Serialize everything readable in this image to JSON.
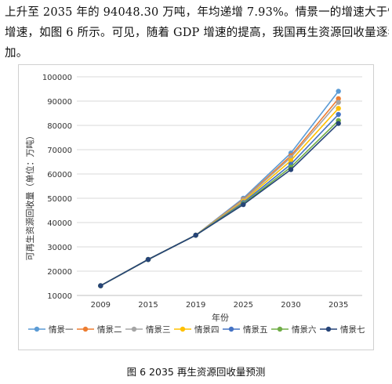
{
  "text_lines": [
    "上升至 2035 年的 94048.30 万吨，年均递增 7.93%。情景一的增速大于情景七的",
    "增速，如图 6 所示。可见，随着 GDP 增速的提高，我国再生资源回收量逐年增",
    "加。"
  ],
  "caption": "图 6 2035 再生资源回收量预测",
  "chart_data": {
    "type": "line",
    "x": [
      "2009",
      "2015",
      "2019",
      "2025",
      "2030",
      "2035"
    ],
    "xlabel": "年份",
    "ylabel": "可再生资源回收量（单位：万吨）",
    "ylim": [
      10000,
      100000
    ],
    "yticks": [
      10000,
      20000,
      30000,
      40000,
      50000,
      60000,
      70000,
      80000,
      90000,
      100000
    ],
    "grid": "horizontal",
    "legend_position": "bottom",
    "series": [
      {
        "name": "情景一",
        "color": "#5b9bd5",
        "values": [
          14000,
          24800,
          34800,
          50000,
          68600,
          94048
        ]
      },
      {
        "name": "情景二",
        "color": "#ed7d31",
        "values": [
          14000,
          24800,
          34800,
          49500,
          67500,
          91000
        ]
      },
      {
        "name": "情景三",
        "color": "#a5a5a5",
        "values": [
          14000,
          24800,
          34800,
          49200,
          66800,
          89500
        ]
      },
      {
        "name": "情景四",
        "color": "#ffc000",
        "values": [
          14000,
          24800,
          34800,
          48700,
          65500,
          87000
        ]
      },
      {
        "name": "情景五",
        "color": "#4472c4",
        "values": [
          14000,
          24800,
          34800,
          48200,
          64000,
          84500
        ]
      },
      {
        "name": "情景六",
        "color": "#70ad47",
        "values": [
          14000,
          24800,
          34800,
          47700,
          62800,
          82000
        ]
      },
      {
        "name": "情景七",
        "color": "#264478",
        "values": [
          14000,
          24800,
          34800,
          47400,
          61800,
          80800
        ]
      }
    ]
  }
}
